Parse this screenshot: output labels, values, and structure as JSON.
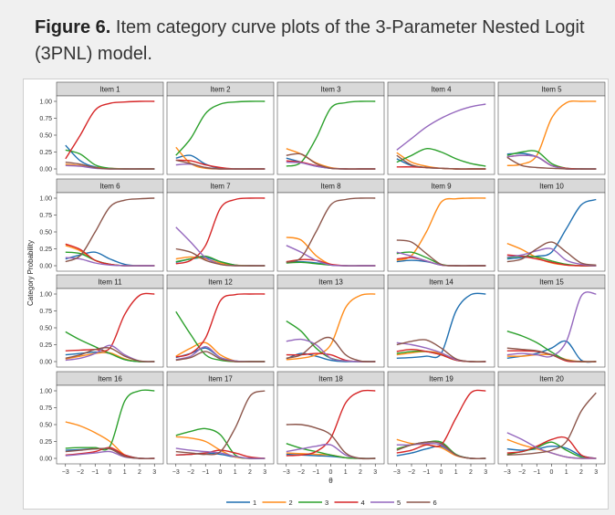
{
  "caption": {
    "label": "Figure 6.",
    "text": "Item category curve plots of the 3-Parameter Nested Logit (3PNL) model."
  },
  "chart_data": {
    "type": "line",
    "title": "",
    "xlabel": "θ",
    "ylabel": "Category Probability",
    "xlim": [
      -3.6,
      3.6
    ],
    "ylim": [
      0,
      1
    ],
    "x_ticks": [
      -3,
      -2,
      -1,
      0,
      1,
      2,
      3
    ],
    "x_tick_labels": [
      "−3",
      "−2",
      "−1",
      "0",
      "1",
      "2",
      "3"
    ],
    "y_ticks": [
      0,
      0.25,
      0.5,
      0.75,
      1
    ],
    "y_tick_labels": [
      "0.00",
      "0.25",
      "0.50",
      "0.75",
      "1.00"
    ],
    "legend": {
      "position": "bottom",
      "entries": [
        {
          "label": "1",
          "color": "#1f6fb0"
        },
        {
          "label": "2",
          "color": "#ff8c1a"
        },
        {
          "label": "3",
          "color": "#2ca02c"
        },
        {
          "label": "4",
          "color": "#d62728"
        },
        {
          "label": "5",
          "color": "#9467bd"
        },
        {
          "label": "6",
          "color": "#8c564b"
        }
      ]
    },
    "x_sample": [
      -3.0,
      -2.0,
      -1.0,
      0.0,
      1.0,
      2.0,
      3.0
    ],
    "panels": [
      {
        "title": "Item 1",
        "series": [
          [
            0.35,
            0.12,
            0.03,
            0.01,
            0,
            0,
            0
          ],
          [
            0.07,
            0.05,
            0.02,
            0.01,
            0,
            0,
            0
          ],
          [
            0.28,
            0.22,
            0.06,
            0.01,
            0,
            0,
            0
          ],
          [
            0.15,
            0.5,
            0.87,
            0.97,
            0.99,
            1.0,
            1.0
          ],
          [
            0.05,
            0.04,
            0.01,
            0,
            0,
            0,
            0
          ],
          [
            0.1,
            0.07,
            0.02,
            0,
            0,
            0,
            0
          ]
        ]
      },
      {
        "title": "Item 2",
        "series": [
          [
            0.16,
            0.2,
            0.07,
            0.01,
            0,
            0,
            0
          ],
          [
            0.32,
            0.08,
            0.01,
            0,
            0,
            0,
            0
          ],
          [
            0.2,
            0.45,
            0.82,
            0.96,
            0.99,
            1.0,
            1.0
          ],
          [
            0.13,
            0.12,
            0.06,
            0.02,
            0,
            0,
            0
          ],
          [
            0.06,
            0.07,
            0.02,
            0,
            0,
            0,
            0
          ],
          [
            0.13,
            0.08,
            0.02,
            0,
            0,
            0,
            0
          ]
        ]
      },
      {
        "title": "Item 3",
        "series": [
          [
            0.16,
            0.1,
            0.04,
            0.01,
            0,
            0,
            0
          ],
          [
            0.3,
            0.22,
            0.09,
            0.02,
            0,
            0,
            0
          ],
          [
            0.04,
            0.1,
            0.45,
            0.9,
            0.98,
            1.0,
            1.0
          ],
          [
            0.12,
            0.1,
            0.05,
            0.01,
            0,
            0,
            0
          ],
          [
            0.1,
            0.09,
            0.04,
            0.01,
            0,
            0,
            0
          ],
          [
            0.2,
            0.22,
            0.08,
            0.01,
            0,
            0,
            0
          ]
        ]
      },
      {
        "title": "Item 4",
        "series": [
          [
            0.15,
            0.05,
            0.02,
            0.01,
            0,
            0,
            0
          ],
          [
            0.24,
            0.1,
            0.04,
            0.01,
            0,
            0,
            0
          ],
          [
            0.1,
            0.2,
            0.3,
            0.25,
            0.15,
            0.08,
            0.04
          ],
          [
            0.03,
            0.03,
            0.02,
            0.01,
            0,
            0,
            0
          ],
          [
            0.28,
            0.45,
            0.62,
            0.75,
            0.85,
            0.92,
            0.96
          ],
          [
            0.2,
            0.06,
            0.02,
            0.01,
            0,
            0,
            0
          ]
        ]
      },
      {
        "title": "Item 5",
        "series": [
          [
            0.22,
            0.23,
            0.18,
            0.05,
            0.01,
            0,
            0
          ],
          [
            0.05,
            0.07,
            0.2,
            0.75,
            0.98,
            1.0,
            1.0
          ],
          [
            0.2,
            0.25,
            0.26,
            0.08,
            0.01,
            0,
            0
          ],
          [
            0.18,
            0.2,
            0.18,
            0.05,
            0.01,
            0,
            0
          ],
          [
            0.18,
            0.2,
            0.18,
            0.05,
            0,
            0,
            0
          ],
          [
            0.17,
            0.05,
            0.02,
            0.01,
            0,
            0,
            0
          ]
        ]
      },
      {
        "title": "Item 6",
        "series": [
          [
            0.1,
            0.16,
            0.2,
            0.1,
            0.02,
            0,
            0
          ],
          [
            0.3,
            0.22,
            0.08,
            0.02,
            0,
            0,
            0
          ],
          [
            0.2,
            0.18,
            0.08,
            0.02,
            0,
            0,
            0
          ],
          [
            0.32,
            0.24,
            0.08,
            0.02,
            0,
            0,
            0
          ],
          [
            0.12,
            0.1,
            0.04,
            0.01,
            0,
            0,
            0
          ],
          [
            0.06,
            0.15,
            0.5,
            0.87,
            0.97,
            0.99,
            1.0
          ]
        ]
      },
      {
        "title": "Item 7",
        "series": [
          [
            0.05,
            0.1,
            0.12,
            0.06,
            0.01,
            0,
            0
          ],
          [
            0.1,
            0.13,
            0.1,
            0.04,
            0.01,
            0,
            0
          ],
          [
            0.06,
            0.1,
            0.14,
            0.06,
            0.01,
            0,
            0
          ],
          [
            0.03,
            0.08,
            0.3,
            0.85,
            0.98,
            1.0,
            1.0
          ],
          [
            0.57,
            0.35,
            0.12,
            0.02,
            0,
            0,
            0
          ],
          [
            0.25,
            0.2,
            0.08,
            0.02,
            0,
            0,
            0
          ]
        ]
      },
      {
        "title": "Item 8",
        "series": [
          [
            0.05,
            0.06,
            0.04,
            0.01,
            0,
            0,
            0
          ],
          [
            0.42,
            0.38,
            0.15,
            0.02,
            0,
            0,
            0
          ],
          [
            0.04,
            0.05,
            0.03,
            0.01,
            0,
            0,
            0
          ],
          [
            0.06,
            0.09,
            0.08,
            0.02,
            0,
            0,
            0
          ],
          [
            0.3,
            0.2,
            0.08,
            0.01,
            0,
            0,
            0
          ],
          [
            0.05,
            0.12,
            0.5,
            0.9,
            0.98,
            1.0,
            1.0
          ]
        ]
      },
      {
        "title": "Item 9",
        "series": [
          [
            0.06,
            0.08,
            0.06,
            0.01,
            0,
            0,
            0
          ],
          [
            0.08,
            0.15,
            0.5,
            0.94,
            0.99,
            1.0,
            1.0
          ],
          [
            0.18,
            0.2,
            0.12,
            0.02,
            0,
            0,
            0
          ],
          [
            0.1,
            0.12,
            0.07,
            0.01,
            0,
            0,
            0
          ],
          [
            0.2,
            0.14,
            0.07,
            0.01,
            0,
            0,
            0
          ],
          [
            0.38,
            0.35,
            0.18,
            0.02,
            0,
            0,
            0
          ]
        ]
      },
      {
        "title": "Item 10",
        "series": [
          [
            0.1,
            0.12,
            0.14,
            0.2,
            0.55,
            0.9,
            0.98
          ],
          [
            0.33,
            0.24,
            0.12,
            0.04,
            0.01,
            0,
            0
          ],
          [
            0.12,
            0.14,
            0.13,
            0.07,
            0.02,
            0,
            0
          ],
          [
            0.16,
            0.14,
            0.1,
            0.05,
            0.01,
            0,
            0
          ],
          [
            0.13,
            0.16,
            0.22,
            0.25,
            0.08,
            0.02,
            0
          ],
          [
            0.06,
            0.1,
            0.25,
            0.35,
            0.2,
            0.04,
            0.01
          ]
        ]
      },
      {
        "title": "Item 11",
        "series": [
          [
            0.1,
            0.12,
            0.14,
            0.12,
            0.03,
            0,
            0
          ],
          [
            0.04,
            0.08,
            0.12,
            0.13,
            0.04,
            0,
            0
          ],
          [
            0.44,
            0.32,
            0.22,
            0.12,
            0.03,
            0,
            0
          ],
          [
            0.16,
            0.17,
            0.18,
            0.2,
            0.7,
            0.98,
            1.0
          ],
          [
            0.02,
            0.05,
            0.12,
            0.24,
            0.1,
            0.01,
            0
          ],
          [
            0.05,
            0.1,
            0.18,
            0.2,
            0.08,
            0.01,
            0
          ]
        ]
      },
      {
        "title": "Item 12",
        "series": [
          [
            0.06,
            0.12,
            0.2,
            0.06,
            0.01,
            0,
            0
          ],
          [
            0.08,
            0.2,
            0.28,
            0.1,
            0.01,
            0,
            0
          ],
          [
            0.74,
            0.4,
            0.1,
            0.02,
            0,
            0,
            0
          ],
          [
            0.07,
            0.12,
            0.35,
            0.9,
            0.99,
            1.0,
            1.0
          ],
          [
            0.03,
            0.08,
            0.22,
            0.06,
            0.01,
            0,
            0
          ],
          [
            0.02,
            0.06,
            0.15,
            0.04,
            0,
            0,
            0
          ]
        ]
      },
      {
        "title": "Item 13",
        "series": [
          [
            0.04,
            0.12,
            0.08,
            0.02,
            0,
            0,
            0
          ],
          [
            0.03,
            0.05,
            0.1,
            0.25,
            0.8,
            0.98,
            1.0
          ],
          [
            0.6,
            0.45,
            0.2,
            0.05,
            0.01,
            0,
            0
          ],
          [
            0.1,
            0.1,
            0.12,
            0.1,
            0.02,
            0,
            0
          ],
          [
            0.3,
            0.33,
            0.25,
            0.05,
            0.01,
            0,
            0
          ],
          [
            0.05,
            0.1,
            0.28,
            0.35,
            0.1,
            0.01,
            0
          ]
        ]
      },
      {
        "title": "Item 14",
        "series": [
          [
            0.05,
            0.06,
            0.08,
            0.12,
            0.75,
            0.99,
            1.0
          ],
          [
            0.1,
            0.13,
            0.15,
            0.12,
            0.03,
            0,
            0
          ],
          [
            0.12,
            0.15,
            0.15,
            0.1,
            0.02,
            0,
            0
          ],
          [
            0.15,
            0.18,
            0.15,
            0.1,
            0.02,
            0,
            0
          ],
          [
            0.28,
            0.25,
            0.2,
            0.13,
            0.03,
            0,
            0
          ],
          [
            0.25,
            0.3,
            0.32,
            0.2,
            0.04,
            0,
            0
          ]
        ]
      },
      {
        "title": "Item 15",
        "series": [
          [
            0.05,
            0.08,
            0.12,
            0.2,
            0.3,
            0.02,
            0
          ],
          [
            0.08,
            0.08,
            0.1,
            0.1,
            0.03,
            0,
            0
          ],
          [
            0.45,
            0.38,
            0.28,
            0.14,
            0.02,
            0,
            0
          ],
          [
            0.16,
            0.16,
            0.15,
            0.1,
            0.01,
            0,
            0
          ],
          [
            0.1,
            0.12,
            0.1,
            0.08,
            0.3,
            0.97,
            1.0
          ],
          [
            0.2,
            0.18,
            0.16,
            0.1,
            0.02,
            0,
            0
          ]
        ]
      },
      {
        "title": "Item 16",
        "series": [
          [
            0.12,
            0.13,
            0.14,
            0.14,
            0.05,
            0,
            0
          ],
          [
            0.54,
            0.48,
            0.38,
            0.25,
            0.05,
            0,
            0
          ],
          [
            0.15,
            0.16,
            0.16,
            0.18,
            0.85,
            1.0,
            1.0
          ],
          [
            0.05,
            0.07,
            0.1,
            0.16,
            0.05,
            0,
            0
          ],
          [
            0.04,
            0.06,
            0.08,
            0.1,
            0.02,
            0,
            0
          ],
          [
            0.1,
            0.12,
            0.14,
            0.14,
            0.03,
            0,
            0
          ]
        ]
      },
      {
        "title": "Item 17",
        "series": [
          [
            0.05,
            0.06,
            0.08,
            0.06,
            0.02,
            0,
            0
          ],
          [
            0.32,
            0.3,
            0.25,
            0.12,
            0.02,
            0,
            0
          ],
          [
            0.34,
            0.4,
            0.44,
            0.35,
            0.05,
            0,
            0
          ],
          [
            0.05,
            0.06,
            0.08,
            0.12,
            0.08,
            0.02,
            0
          ],
          [
            0.15,
            0.12,
            0.1,
            0.08,
            0.03,
            0,
            0
          ],
          [
            0.1,
            0.08,
            0.06,
            0.1,
            0.45,
            0.92,
            1.0
          ]
        ]
      },
      {
        "title": "Item 18",
        "series": [
          [
            0.06,
            0.05,
            0.04,
            0.03,
            0.01,
            0,
            0
          ],
          [
            0.08,
            0.07,
            0.06,
            0.05,
            0.01,
            0,
            0
          ],
          [
            0.22,
            0.15,
            0.1,
            0.05,
            0.01,
            0,
            0
          ],
          [
            0.04,
            0.05,
            0.1,
            0.3,
            0.82,
            0.99,
            1.0
          ],
          [
            0.1,
            0.14,
            0.18,
            0.2,
            0.05,
            0,
            0
          ],
          [
            0.5,
            0.5,
            0.45,
            0.35,
            0.08,
            0,
            0
          ]
        ]
      },
      {
        "title": "Item 19",
        "series": [
          [
            0.04,
            0.08,
            0.14,
            0.18,
            0.05,
            0,
            0
          ],
          [
            0.28,
            0.22,
            0.2,
            0.16,
            0.04,
            0,
            0
          ],
          [
            0.14,
            0.2,
            0.24,
            0.24,
            0.06,
            0,
            0
          ],
          [
            0.08,
            0.12,
            0.2,
            0.2,
            0.6,
            0.97,
            1.0
          ],
          [
            0.2,
            0.2,
            0.22,
            0.2,
            0.05,
            0,
            0
          ],
          [
            0.12,
            0.2,
            0.24,
            0.22,
            0.05,
            0,
            0
          ]
        ]
      },
      {
        "title": "Item 20",
        "series": [
          [
            0.14,
            0.12,
            0.14,
            0.18,
            0.15,
            0.04,
            0
          ],
          [
            0.28,
            0.2,
            0.14,
            0.08,
            0.02,
            0,
            0
          ],
          [
            0.06,
            0.1,
            0.16,
            0.24,
            0.12,
            0.02,
            0
          ],
          [
            0.08,
            0.1,
            0.18,
            0.28,
            0.3,
            0.05,
            0
          ],
          [
            0.38,
            0.28,
            0.16,
            0.08,
            0.02,
            0,
            0
          ],
          [
            0.05,
            0.06,
            0.08,
            0.12,
            0.25,
            0.7,
            0.97
          ]
        ]
      }
    ]
  }
}
